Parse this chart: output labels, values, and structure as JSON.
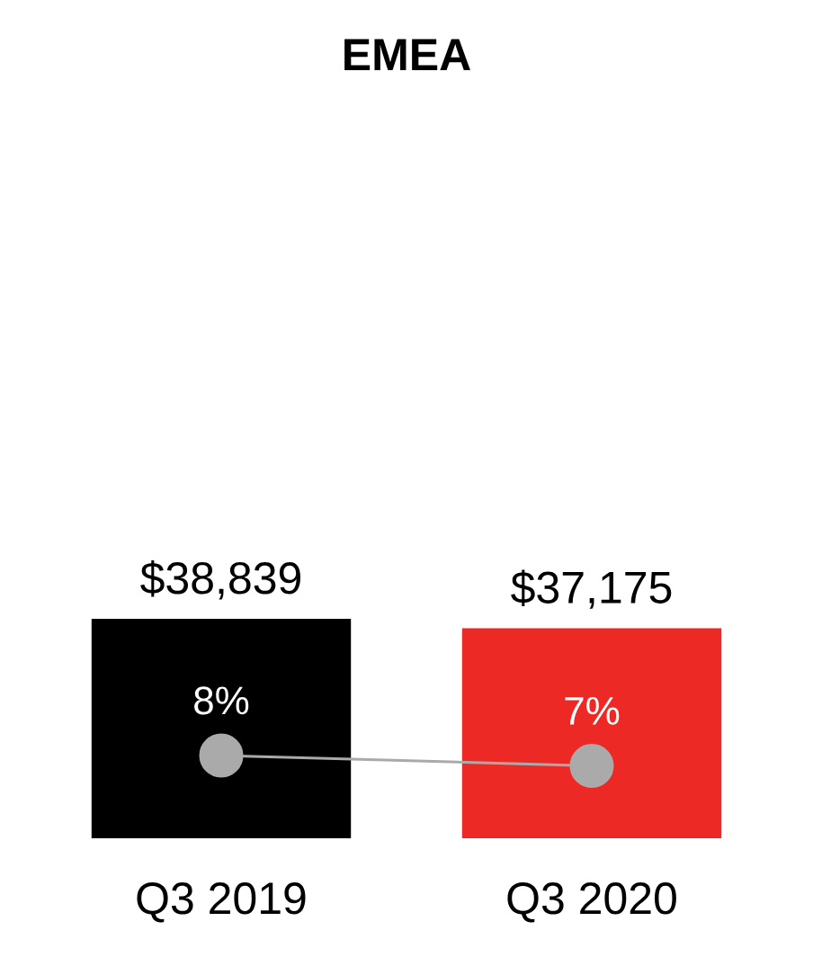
{
  "chart_data": {
    "type": "bar",
    "title": "EMEA",
    "categories": [
      "Q3 2019",
      "Q3 2020"
    ],
    "tick_labels": "x",
    "series": [
      {
        "colors": [
          "#000000",
          "#ed2926"
        ],
        "values": [
          38839,
          37175
        ],
        "value_labels": [
          "$38,839",
          "$37,175"
        ]
      },
      {
        "type": "line",
        "axis": "y2",
        "color": "#aaaaaa",
        "marker": "circle",
        "line_style": "solid",
        "values": [
          8,
          7
        ],
        "value_labels": [
          "8%",
          "7%"
        ]
      }
    ]
  }
}
